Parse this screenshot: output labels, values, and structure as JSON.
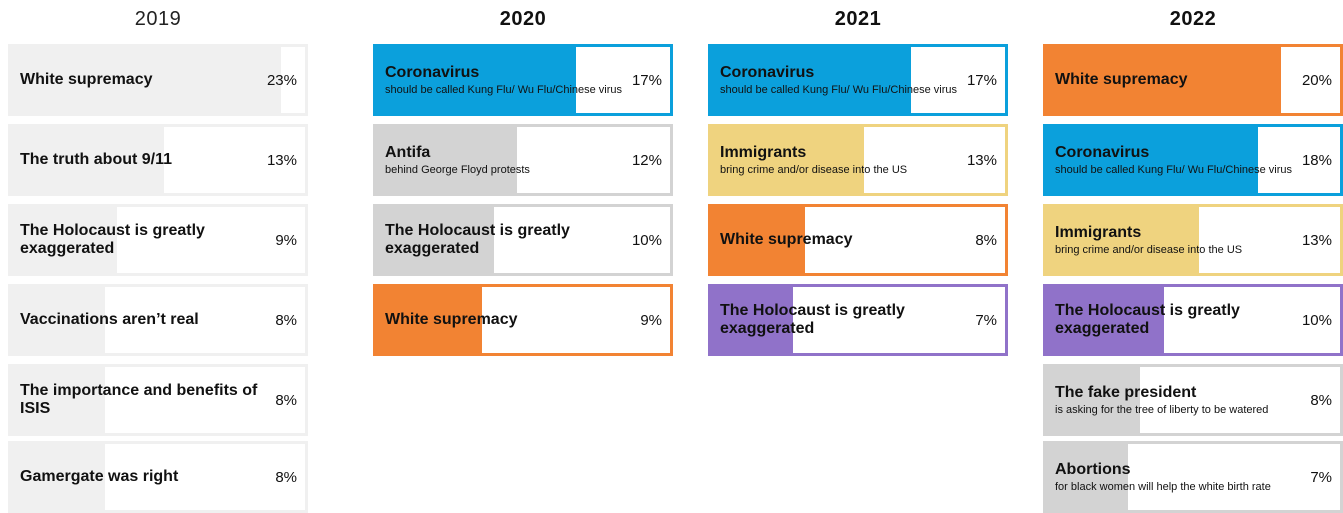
{
  "colors": {
    "blue": "#0ba0dc",
    "orange": "#f28333",
    "purple": "#9072c9",
    "yellow": "#efd37f",
    "gray": "#d3d3d3",
    "light_gray": "#f0f0f0"
  },
  "chart_data": [
    {
      "type": "bar",
      "title": "2019",
      "categories": [
        "White supremacy",
        "The truth about 9/11",
        "The Holocaust is greatly exaggerated",
        "Vaccinations aren’t real",
        "The importance and benefits of ISIS",
        "Gamergate was right"
      ],
      "values": [
        23,
        13,
        9,
        8,
        8,
        8
      ],
      "unit": "%",
      "items": [
        {
          "label": "White supremacy",
          "sub": "",
          "value": 23,
          "display": "23%",
          "color": "light_gray"
        },
        {
          "label": "The truth about 9/11",
          "sub": "",
          "value": 13,
          "display": "13%",
          "color": "light_gray"
        },
        {
          "label": "The Holocaust is greatly exaggerated",
          "sub": "",
          "value": 9,
          "display": "9%",
          "color": "light_gray"
        },
        {
          "label": "Vaccinations aren’t real",
          "sub": "",
          "value": 8,
          "display": "8%",
          "color": "light_gray"
        },
        {
          "label": "The importance and benefits of ISIS",
          "sub": "",
          "value": 8,
          "display": "8%",
          "color": "light_gray"
        },
        {
          "label": "Gamergate was right",
          "sub": "",
          "value": 8,
          "display": "8%",
          "color": "light_gray"
        }
      ]
    },
    {
      "type": "bar",
      "title": "2020",
      "categories": [
        "Coronavirus",
        "Antifa",
        "The Holocaust is greatly exaggerated",
        "White supremacy"
      ],
      "values": [
        17,
        12,
        10,
        9
      ],
      "unit": "%",
      "items": [
        {
          "label": "Coronavirus",
          "sub": "should be called Kung Flu/ Wu Flu/Chinese virus",
          "value": 17,
          "display": "17%",
          "color": "blue"
        },
        {
          "label": "Antifa",
          "sub": "behind George Floyd protests",
          "value": 12,
          "display": "12%",
          "color": "gray"
        },
        {
          "label": "The Holocaust is greatly exaggerated",
          "sub": "",
          "value": 10,
          "display": "10%",
          "color": "gray"
        },
        {
          "label": "White supremacy",
          "sub": "",
          "value": 9,
          "display": "9%",
          "color": "orange"
        }
      ]
    },
    {
      "type": "bar",
      "title": "2021",
      "categories": [
        "Coronavirus",
        "Immigrants",
        "White supremacy",
        "The Holocaust is greatly exaggerated"
      ],
      "values": [
        17,
        13,
        8,
        7
      ],
      "unit": "%",
      "items": [
        {
          "label": "Coronavirus",
          "sub": "should be called Kung Flu/ Wu Flu/Chinese virus",
          "value": 17,
          "display": "17%",
          "color": "blue"
        },
        {
          "label": "Immigrants",
          "sub": "bring crime and/or disease into the US",
          "value": 13,
          "display": "13%",
          "color": "yellow"
        },
        {
          "label": "White supremacy",
          "sub": "",
          "value": 8,
          "display": "8%",
          "color": "orange"
        },
        {
          "label": "The Holocaust is greatly exaggerated",
          "sub": "",
          "value": 7,
          "display": "7%",
          "color": "purple"
        }
      ]
    },
    {
      "type": "bar",
      "title": "2022",
      "categories": [
        "White supremacy",
        "Coronavirus",
        "Immigrants",
        "The Holocaust is greatly exaggerated",
        "The fake president",
        "Abortions"
      ],
      "values": [
        20,
        18,
        13,
        10,
        8,
        7
      ],
      "unit": "%",
      "items": [
        {
          "label": "White supremacy",
          "sub": "",
          "value": 20,
          "display": "20%",
          "color": "orange"
        },
        {
          "label": "Coronavirus",
          "sub": "should be called Kung Flu/ Wu Flu/Chinese virus",
          "value": 18,
          "display": "18%",
          "color": "blue"
        },
        {
          "label": "Immigrants",
          "sub": "bring crime and/or disease into the US",
          "value": 13,
          "display": "13%",
          "color": "yellow"
        },
        {
          "label": "The Holocaust is greatly exaggerated",
          "sub": "",
          "value": 10,
          "display": "10%",
          "color": "purple"
        },
        {
          "label": "The fake president",
          "sub": "is asking for the tree of liberty to be watered",
          "value": 8,
          "display": "8%",
          "color": "gray"
        },
        {
          "label": "Abortions",
          "sub": "for black women will help the white birth rate",
          "value": 7,
          "display": "7%",
          "color": "gray"
        }
      ]
    }
  ]
}
